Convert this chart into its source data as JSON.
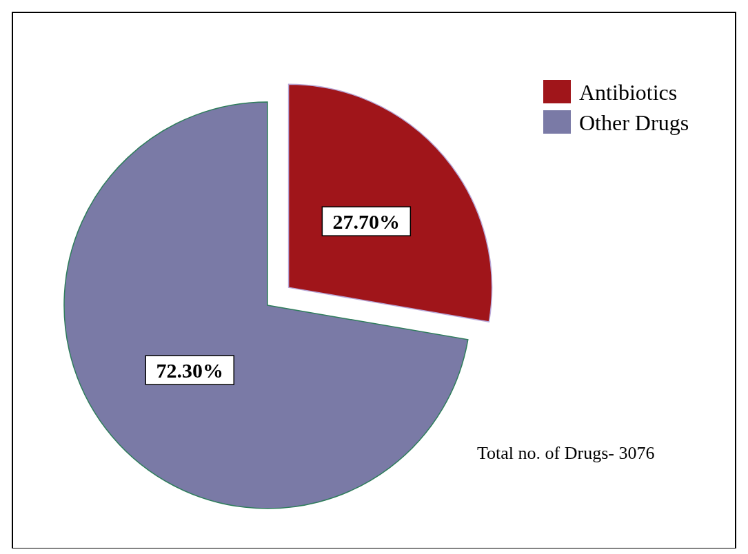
{
  "chart_data": {
    "type": "pie",
    "categories": [
      "Antibiotics",
      "Other Drugs"
    ],
    "values": [
      27.7,
      72.3
    ],
    "colors": [
      "#a0151a",
      "#7a7aa6"
    ],
    "value_labels": [
      "27.70%",
      "72.30%"
    ],
    "legend": "top right",
    "annotations": [
      "Total no. of Drugs- 3076"
    ]
  }
}
